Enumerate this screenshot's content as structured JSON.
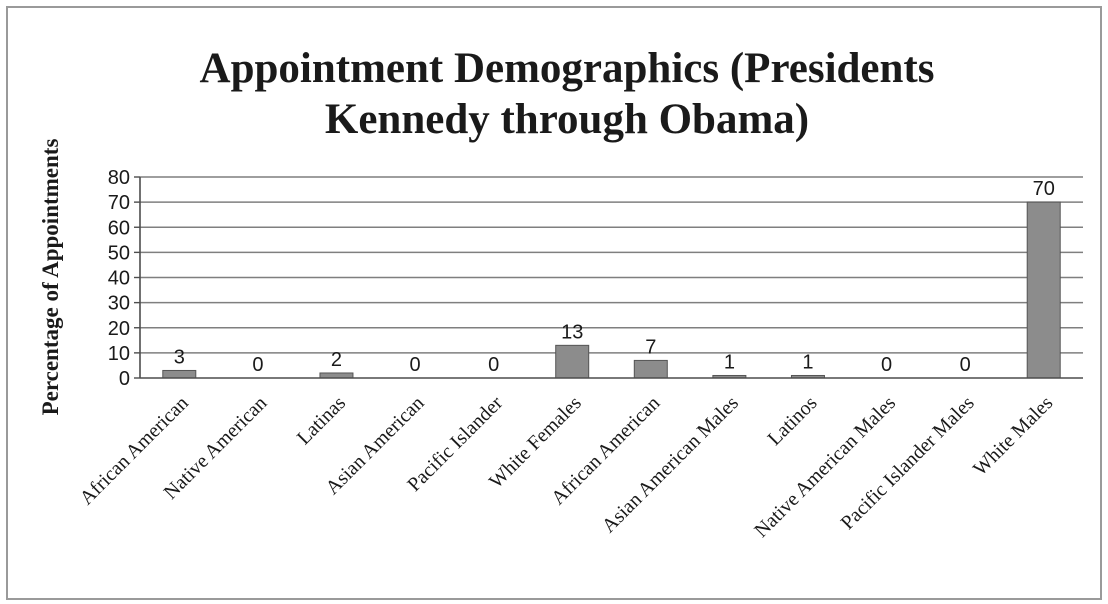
{
  "chart_data": {
    "type": "bar",
    "title": "Appointment Demographics (Presidents Kennedy through Obama)",
    "title_lines": [
      "Appointment Demographics (Presidents",
      "Kennedy through Obama)"
    ],
    "xlabel": "",
    "ylabel": "Percentage of Appointments",
    "ylim": [
      0,
      80
    ],
    "yticks": [
      0,
      10,
      20,
      30,
      40,
      50,
      60,
      70,
      80
    ],
    "grid": true,
    "legend": "none",
    "categories": [
      "African American",
      "Native American",
      "Latinas",
      "Asian American",
      "Pacific Islander",
      "White Females",
      "African American",
      "Asian American Males",
      "Latinos",
      "Native American Males",
      "Pacific Islander Males",
      "White Males"
    ],
    "values": [
      3,
      0,
      2,
      0,
      0,
      13,
      7,
      1,
      1,
      0,
      0,
      70
    ],
    "data_labels": [
      "3",
      "0",
      "2",
      "0",
      "0",
      "13",
      "7",
      "1",
      "1",
      "0",
      "0",
      "70"
    ],
    "colors": {
      "bar": "#8c8c8c",
      "bar_edge": "#555555",
      "grid": "#7f7f7f",
      "axis": "#4d4d4d",
      "text": "#1a1a1a"
    }
  }
}
